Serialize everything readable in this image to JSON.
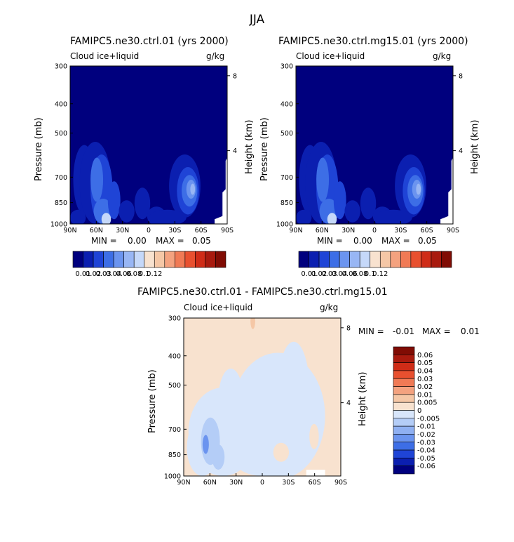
{
  "figure": {
    "title": "JJA"
  },
  "chart_data": [
    {
      "type": "heatmap",
      "title": "FAMIPC5.ne30.ctrl.01 (yrs 2000)",
      "variable": "Cloud ice+liquid",
      "units": "g/kg",
      "ylabel": "Pressure (mb)",
      "ylabel_right": "Height (km)",
      "x_ticks": [
        "90N",
        "60N",
        "30N",
        "0",
        "30S",
        "60S",
        "90S"
      ],
      "y_ticks": [
        300,
        400,
        500,
        700,
        850,
        1000
      ],
      "height_ticks": [
        8,
        4
      ],
      "min_label": "MIN =",
      "min_value": "0.00",
      "max_label": "MAX =",
      "max_value": "0.05",
      "colorbar_levels": [
        "0.01",
        "0.02",
        "0.03",
        "0.04",
        "0.06",
        "0.08",
        "0.1",
        "0.12"
      ]
    },
    {
      "type": "heatmap",
      "title": "FAMIPC5.ne30.ctrl.mg15.01 (yrs 2000)",
      "variable": "Cloud ice+liquid",
      "units": "g/kg",
      "ylabel": "Pressure (mb)",
      "ylabel_right": "Height (km)",
      "x_ticks": [
        "90N",
        "60N",
        "30N",
        "0",
        "30S",
        "60S",
        "90S"
      ],
      "y_ticks": [
        300,
        400,
        500,
        700,
        850,
        1000
      ],
      "height_ticks": [
        8,
        4
      ],
      "min_label": "MIN =",
      "min_value": "0.00",
      "max_label": "MAX =",
      "max_value": "0.05",
      "colorbar_levels": [
        "0.01",
        "0.02",
        "0.03",
        "0.04",
        "0.06",
        "0.08",
        "0.1",
        "0.12"
      ]
    },
    {
      "type": "heatmap",
      "title": "FAMIPC5.ne30.ctrl.01 - FAMIPC5.ne30.ctrl.mg15.01",
      "variable": "Cloud ice+liquid",
      "units": "g/kg",
      "ylabel": "Pressure (mb)",
      "ylabel_right": "Height (km)",
      "x_ticks": [
        "90N",
        "60N",
        "30N",
        "0",
        "30S",
        "60S",
        "90S"
      ],
      "y_ticks": [
        300,
        400,
        500,
        700,
        850,
        1000
      ],
      "height_ticks": [
        8,
        4
      ],
      "min_label": "MIN =",
      "min_value": "-0.01",
      "max_label": "MAX =",
      "max_value": "0.01",
      "colorbar_levels": [
        "0.06",
        "0.05",
        "0.04",
        "0.03",
        "0.02",
        "0.01",
        "0.005",
        "0",
        "-0.005",
        "-0.01",
        "-0.02",
        "-0.03",
        "-0.04",
        "-0.05",
        "-0.06"
      ]
    }
  ],
  "colors": {
    "seq": [
      "#00007e",
      "#0b1fb0",
      "#1f44d6",
      "#3d6ee6",
      "#6b94ef",
      "#98b6f4",
      "#c5d8f9",
      "#f8e2cf",
      "#f5c7a6",
      "#f4a27f",
      "#f07a55",
      "#e8502f",
      "#cf2c17",
      "#a81a0e",
      "#800c04"
    ],
    "diff": [
      "#800c04",
      "#a81a0e",
      "#cf2c17",
      "#e8502f",
      "#f07a55",
      "#f4a27f",
      "#f5c7a6",
      "#f8e2cf",
      "#d8e6fb",
      "#b4cdf7",
      "#8fb0f2",
      "#6b94ef",
      "#3d6ee6",
      "#1f44d6",
      "#0b1fb0",
      "#00007e"
    ]
  }
}
